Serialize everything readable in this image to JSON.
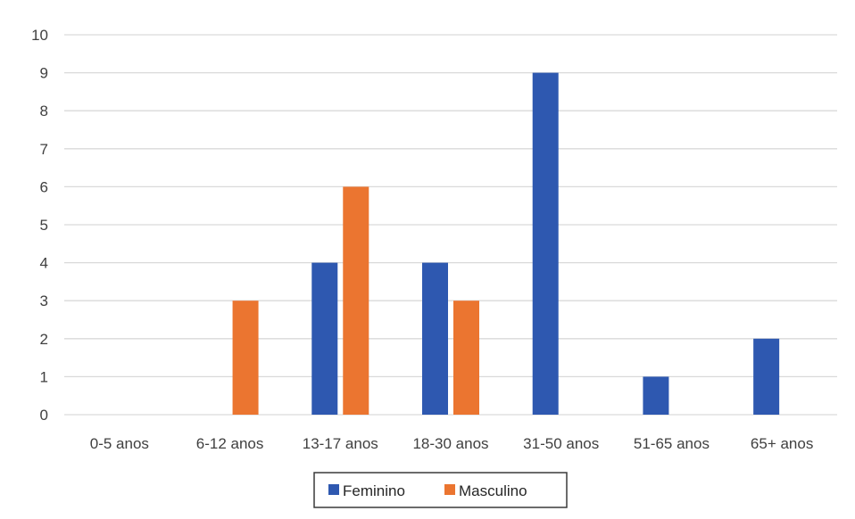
{
  "chart_data": {
    "type": "bar",
    "categories": [
      "0-5 anos",
      "6-12 anos",
      "13-17 anos",
      "18-30 anos",
      "31-50 anos",
      "51-65 anos",
      "65+ anos"
    ],
    "series": [
      {
        "name": "Feminino",
        "color": "#2E58B0",
        "values": [
          0,
          0,
          4,
          4,
          9,
          1,
          2
        ]
      },
      {
        "name": "Masculino",
        "color": "#EB7530",
        "values": [
          0,
          3,
          6,
          3,
          0,
          0,
          0
        ]
      }
    ],
    "ylim": [
      0,
      10
    ],
    "yticks": [
      "0",
      "1",
      "2",
      "3",
      "4",
      "5",
      "6",
      "7",
      "8",
      "9",
      "10"
    ],
    "grid": true,
    "legend_position": "bottom",
    "gridline_color": "#d9d9d9",
    "legend_border_color": "#3a3a3a"
  }
}
